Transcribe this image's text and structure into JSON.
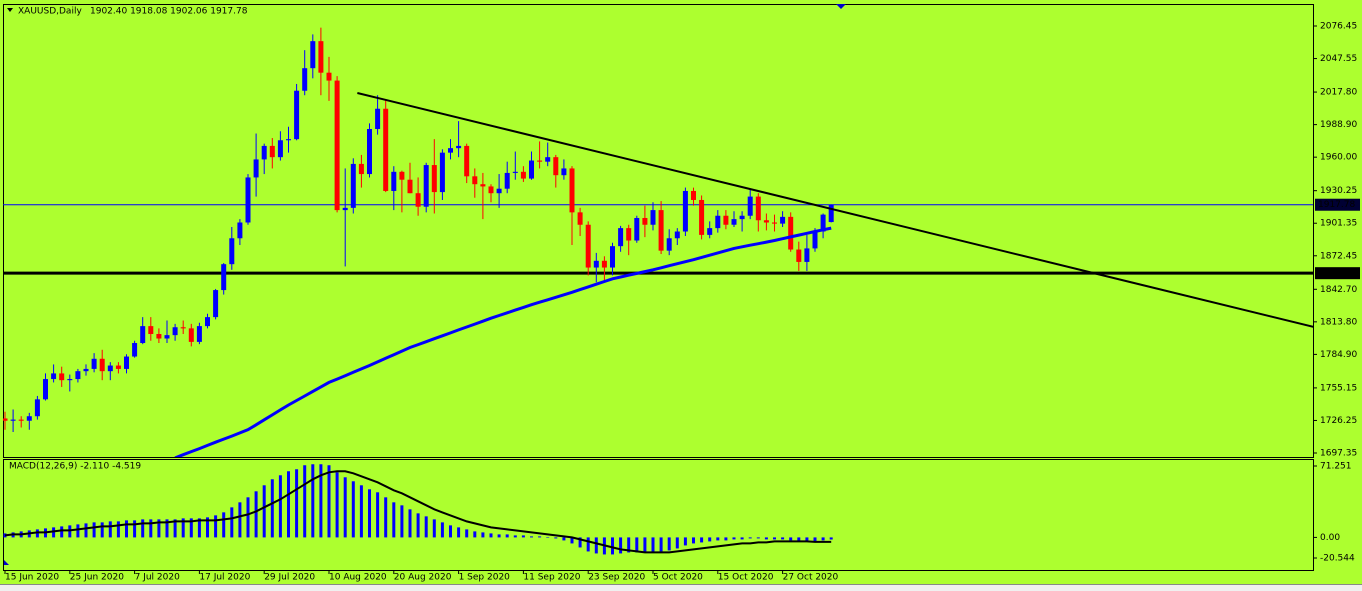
{
  "chart_data": [
    {
      "type": "candlestick",
      "title": "XAUUSD,Daily",
      "subtitle": "1902.40 1918.08 1902.06 1917.78",
      "up_color": "#0000ff",
      "down_color": "#ff0000",
      "categories": [
        "15 Jun 2020",
        null,
        null,
        null,
        null,
        null,
        null,
        null,
        "25 Jun 2020",
        null,
        null,
        null,
        null,
        null,
        null,
        null,
        "7 Jul 2020",
        null,
        null,
        null,
        null,
        null,
        null,
        null,
        "17 Jul 2020",
        null,
        null,
        null,
        null,
        null,
        null,
        null,
        "29 Jul 2020",
        null,
        null,
        null,
        null,
        null,
        null,
        null,
        "10 Aug 2020",
        null,
        null,
        null,
        null,
        null,
        null,
        null,
        "20 Aug 2020",
        null,
        null,
        null,
        null,
        null,
        null,
        null,
        "1 Sep 2020",
        null,
        null,
        null,
        null,
        null,
        null,
        null,
        "11 Sep 2020",
        null,
        null,
        null,
        null,
        null,
        null,
        null,
        "23 Sep 2020",
        null,
        null,
        null,
        null,
        null,
        null,
        null,
        "5 Oct 2020",
        null,
        null,
        null,
        null,
        null,
        null,
        null,
        "15 Oct 2020",
        null,
        null,
        null,
        null,
        null,
        null,
        null,
        "27 Oct 2020",
        null,
        null,
        null,
        null,
        null,
        null
      ],
      "candles": [
        [
          1728,
          1734,
          1718,
          1726
        ],
        [
          1726,
          1736,
          1716,
          1727
        ],
        [
          1727,
          1730,
          1720,
          1726
        ],
        [
          1726,
          1733,
          1718,
          1730
        ],
        [
          1730,
          1748,
          1727,
          1745
        ],
        [
          1745,
          1768,
          1744,
          1763
        ],
        [
          1763,
          1776,
          1760,
          1768
        ],
        [
          1768,
          1774,
          1756,
          1762
        ],
        [
          1762,
          1767,
          1752,
          1763
        ],
        [
          1763,
          1772,
          1760,
          1770
        ],
        [
          1770,
          1776,
          1766,
          1772
        ],
        [
          1772,
          1786,
          1769,
          1781
        ],
        [
          1781,
          1789,
          1762,
          1770
        ],
        [
          1770,
          1778,
          1762,
          1775
        ],
        [
          1775,
          1778,
          1768,
          1772
        ],
        [
          1772,
          1785,
          1768,
          1783
        ],
        [
          1783,
          1797,
          1782,
          1795
        ],
        [
          1795,
          1818,
          1794,
          1810
        ],
        [
          1810,
          1818,
          1797,
          1803
        ],
        [
          1803,
          1808,
          1795,
          1799
        ],
        [
          1799,
          1815,
          1795,
          1802
        ],
        [
          1802,
          1812,
          1797,
          1809
        ],
        [
          1809,
          1815,
          1803,
          1808
        ],
        [
          1808,
          1812,
          1792,
          1796
        ],
        [
          1796,
          1813,
          1794,
          1810
        ],
        [
          1810,
          1821,
          1808,
          1818
        ],
        [
          1818,
          1843,
          1816,
          1842
        ],
        [
          1842,
          1866,
          1838,
          1865
        ],
        [
          1865,
          1898,
          1860,
          1888
        ],
        [
          1888,
          1905,
          1882,
          1902
        ],
        [
          1902,
          1945,
          1900,
          1942
        ],
        [
          1942,
          1981,
          1925,
          1958
        ],
        [
          1958,
          1972,
          1945,
          1970
        ],
        [
          1970,
          1977,
          1950,
          1960
        ],
        [
          1960,
          1983,
          1957,
          1975
        ],
        [
          1975,
          1987,
          1964,
          1976
        ],
        [
          1976,
          2025,
          1975,
          2019
        ],
        [
          2019,
          2055,
          2015,
          2039
        ],
        [
          2039,
          2069,
          2030,
          2063
        ],
        [
          2063,
          2075,
          2015,
          2035
        ],
        [
          2035,
          2049,
          2010,
          2028
        ],
        [
          2028,
          2032,
          1911,
          1913
        ],
        [
          1913,
          1950,
          1863,
          1915
        ],
        [
          1915,
          1959,
          1910,
          1954
        ],
        [
          1954,
          1962,
          1933,
          1945
        ],
        [
          1945,
          1990,
          1942,
          1985
        ],
        [
          1985,
          2015,
          1980,
          2003
        ],
        [
          2003,
          2011,
          1929,
          1930
        ],
        [
          1930,
          1952,
          1913,
          1947
        ],
        [
          1947,
          1948,
          1911,
          1940
        ],
        [
          1940,
          1955,
          1928,
          1928
        ],
        [
          1928,
          1942,
          1908,
          1916
        ],
        [
          1916,
          1955,
          1911,
          1953
        ],
        [
          1953,
          1976,
          1910,
          1929
        ],
        [
          1929,
          1967,
          1922,
          1964
        ],
        [
          1964,
          1976,
          1958,
          1968
        ],
        [
          1968,
          1992,
          1960,
          1970
        ],
        [
          1970,
          1972,
          1937,
          1943
        ],
        [
          1943,
          1950,
          1924,
          1936
        ],
        [
          1936,
          1946,
          1905,
          1934
        ],
        [
          1934,
          1936,
          1920,
          1928
        ],
        [
          1928,
          1945,
          1915,
          1932
        ],
        [
          1932,
          1956,
          1928,
          1946
        ],
        [
          1946,
          1965,
          1940,
          1947
        ],
        [
          1947,
          1952,
          1938,
          1941
        ],
        [
          1941,
          1965,
          1940,
          1957
        ],
        [
          1957,
          1974,
          1950,
          1956
        ],
        [
          1956,
          1973,
          1952,
          1960
        ],
        [
          1960,
          1962,
          1933,
          1944
        ],
        [
          1944,
          1958,
          1940,
          1950
        ],
        [
          1950,
          1952,
          1882,
          1911
        ],
        [
          1911,
          1915,
          1890,
          1900
        ],
        [
          1900,
          1903,
          1855,
          1862
        ],
        [
          1862,
          1875,
          1849,
          1868
        ],
        [
          1868,
          1872,
          1850,
          1862
        ],
        [
          1862,
          1884,
          1855,
          1881
        ],
        [
          1881,
          1899,
          1876,
          1897
        ],
        [
          1897,
          1900,
          1873,
          1886
        ],
        [
          1886,
          1908,
          1884,
          1906
        ],
        [
          1906,
          1917,
          1889,
          1900
        ],
        [
          1900,
          1920,
          1895,
          1913
        ],
        [
          1913,
          1921,
          1874,
          1877
        ],
        [
          1877,
          1896,
          1873,
          1888
        ],
        [
          1888,
          1897,
          1882,
          1894
        ],
        [
          1894,
          1933,
          1890,
          1930
        ],
        [
          1930,
          1933,
          1917,
          1922
        ],
        [
          1922,
          1926,
          1887,
          1891
        ],
        [
          1891,
          1903,
          1888,
          1897
        ],
        [
          1897,
          1913,
          1893,
          1908
        ],
        [
          1908,
          1913,
          1896,
          1900
        ],
        [
          1900,
          1912,
          1898,
          1905
        ],
        [
          1905,
          1912,
          1894,
          1908
        ],
        [
          1908,
          1932,
          1905,
          1925
        ],
        [
          1925,
          1928,
          1894,
          1904
        ],
        [
          1904,
          1910,
          1895,
          1902
        ],
        [
          1902,
          1909,
          1894,
          1901
        ],
        [
          1901,
          1912,
          1898,
          1907
        ],
        [
          1907,
          1911,
          1876,
          1878
        ],
        [
          1878,
          1885,
          1859,
          1867
        ],
        [
          1867,
          1891,
          1859,
          1879
        ],
        [
          1879,
          1897,
          1876,
          1894
        ],
        [
          1894,
          1910,
          1888,
          1909
        ],
        [
          1902.4,
          1918.08,
          1902.06,
          1917.78
        ]
      ],
      "moving_average": {
        "color": "#0000ff",
        "values": [
          null,
          null,
          null,
          null,
          null,
          null,
          null,
          null,
          null,
          null,
          null,
          null,
          null,
          null,
          null,
          null,
          null,
          null,
          null,
          null,
          null,
          1693,
          1695.8,
          1698.6,
          1701.3,
          1704.1,
          1706.9,
          1709.7,
          1712.4,
          1715.2,
          1718,
          1722.4,
          1726.8,
          1731.2,
          1735.6,
          1740,
          1744,
          1748,
          1752,
          1756,
          1760,
          1763,
          1766,
          1769,
          1772,
          1775,
          1778.2,
          1781.4,
          1784.6,
          1787.8,
          1791,
          1793.6,
          1796.2,
          1798.8,
          1801.4,
          1804,
          1806.6,
          1809.2,
          1811.8,
          1814.4,
          1817,
          1819.4,
          1821.8,
          1824.2,
          1826.6,
          1829,
          1831.2,
          1833.4,
          1835.6,
          1837.8,
          1840,
          1842.4,
          1844.8,
          1847.2,
          1849.6,
          1852,
          1853.6,
          1855.2,
          1856.8,
          1858.4,
          1860,
          1861.8,
          1863.6,
          1865.4,
          1867.2,
          1869,
          1871,
          1873,
          1875,
          1877,
          1879,
          1880.4,
          1881.8,
          1883.2,
          1884.6,
          1886,
          1887.6,
          1889.2,
          1890.8,
          1892.4,
          1894,
          1895.5,
          1897
        ]
      },
      "trend_line": {
        "color": "#000000",
        "start": [
          43.5,
          2017
        ],
        "end": [
          161.5,
          1809.4
        ]
      },
      "levels": [
        {
          "value": 1917.78,
          "label": "1917.78",
          "color": "#0000ff"
        },
        {
          "value": 1857,
          "label": "1857.00",
          "color": "#000000"
        }
      ],
      "ylim": [
        1693.8,
        2095.1
      ],
      "yticks": [
        2076.45,
        2047.55,
        {
          "value": 2017.8,
          "label": "2017.80"
        },
        {
          "value": 1988.9,
          "label": "1988.90"
        },
        {
          "value": 1960,
          "label": "1960.00"
        },
        1930.25,
        1901.35,
        1872.45,
        {
          "value": 1842.7,
          "label": "1842.70"
        },
        {
          "value": 1813.8,
          "label": "1813.80"
        },
        {
          "value": 1784.9,
          "label": "1784.90"
        },
        1755.15,
        1726.25,
        1697.35
      ]
    },
    {
      "type": "macd",
      "title": "MACD(12,26,9) -2.110 -4.519",
      "histogram": {
        "color": "#0000ff",
        "values": [
          4,
          5,
          6,
          7,
          8,
          9,
          10,
          11,
          12,
          13,
          14,
          15,
          15,
          16,
          16,
          17,
          17,
          18,
          18,
          18,
          18,
          18,
          19,
          19,
          19,
          20,
          22,
          25,
          30,
          35,
          40,
          46,
          52,
          58,
          62,
          66,
          68,
          72,
          73,
          73,
          72,
          65,
          60,
          56,
          52,
          48,
          45,
          40,
          35,
          32,
          28,
          24,
          21,
          18,
          15,
          12,
          10,
          8,
          6,
          5,
          4,
          3,
          3,
          2,
          2,
          1,
          1,
          0,
          -1,
          -3,
          -6,
          -10,
          -14,
          -16,
          -17,
          -17,
          -16,
          -15,
          -15,
          -15,
          -15,
          -14,
          -13,
          -11,
          -8,
          -6,
          -5,
          -4,
          -3,
          -3,
          -2,
          -2,
          -1,
          -1,
          -2,
          -2,
          -2,
          -3,
          -4,
          -4,
          -4,
          -3,
          -2.11
        ]
      },
      "signal": {
        "color": "#000000",
        "values": [
          2,
          3,
          3,
          4,
          5,
          5,
          6,
          7,
          7,
          8,
          9,
          10,
          11,
          11,
          12,
          13,
          13,
          14,
          14,
          15,
          15,
          16,
          16,
          16,
          17,
          17,
          17,
          18,
          19,
          21,
          23,
          26,
          30,
          34,
          38,
          43,
          48,
          53,
          58,
          62,
          65,
          66,
          66,
          64,
          61,
          58,
          55,
          51,
          47,
          44,
          40,
          36,
          32,
          28,
          25,
          22,
          19,
          16,
          14,
          12,
          10,
          9,
          8,
          7,
          6,
          5,
          4,
          3,
          2,
          1,
          0,
          -2,
          -4,
          -6,
          -8,
          -10,
          -12,
          -13,
          -14,
          -15,
          -15,
          -15,
          -15,
          -14,
          -13,
          -12,
          -11,
          -10,
          -9,
          -8,
          -7,
          -6,
          -6,
          -5,
          -5,
          -4,
          -4,
          -4,
          -4,
          -4,
          -4.5,
          -4.5,
          -4.519
        ]
      },
      "ylim": [
        -32.52,
        77.24
      ],
      "yticks": [
        71.251,
        {
          "value": 0,
          "label": "0.00"
        },
        -20.544
      ]
    }
  ]
}
